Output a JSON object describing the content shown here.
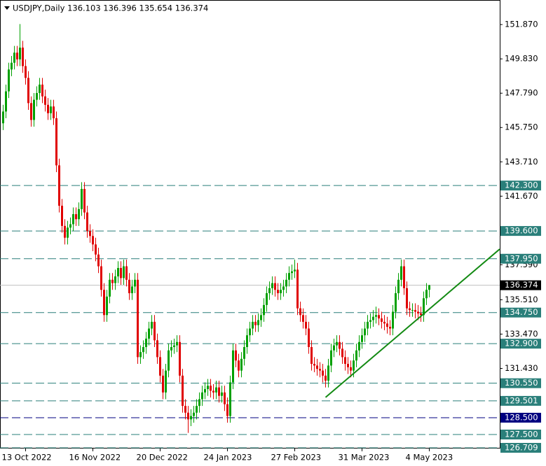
{
  "chart_data": {
    "type": "candlestick",
    "title": "USDJPY,Daily  136.103 136.396 135.654 136.374",
    "categories": [
      null,
      null,
      null,
      null,
      null,
      null,
      null,
      null,
      "13 Oct 2022",
      null,
      null,
      null,
      null,
      null,
      null,
      null,
      null,
      null,
      null,
      null,
      null,
      null,
      null,
      null,
      null,
      null,
      null,
      null,
      null,
      null,
      null,
      null,
      "16 Nov 2022",
      null,
      null,
      null,
      null,
      null,
      null,
      null,
      null,
      null,
      null,
      null,
      null,
      null,
      null,
      null,
      null,
      null,
      null,
      null,
      null,
      null,
      null,
      null,
      "20 Dec 2022",
      null,
      null,
      null,
      null,
      null,
      null,
      null,
      null,
      null,
      null,
      null,
      null,
      null,
      null,
      null,
      null,
      null,
      null,
      null,
      null,
      null,
      null,
      null,
      "24 Jan 2023",
      null,
      null,
      null,
      null,
      null,
      null,
      null,
      null,
      null,
      null,
      null,
      null,
      null,
      null,
      null,
      null,
      null,
      null,
      null,
      null,
      null,
      null,
      null,
      "27 Feb 2023",
      null,
      null,
      null,
      null,
      null,
      null,
      null,
      null,
      null,
      null,
      null,
      null,
      null,
      null,
      null,
      null,
      null,
      null,
      null,
      null,
      null,
      null,
      null,
      "31 Mar 2023",
      null,
      null,
      null,
      null,
      null,
      null,
      null,
      null,
      null,
      null,
      null,
      null,
      null,
      null,
      null,
      null,
      null,
      null,
      null,
      null,
      null,
      null,
      null,
      "4 May 2023"
    ],
    "open": [
      146,
      146.7,
      147.9,
      149.2,
      149.6,
      150.2,
      149.8,
      150.5,
      149.4,
      148.7,
      147.2,
      146.2,
      147.4,
      147.8,
      148.3,
      147.6,
      147.1,
      146.6,
      147,
      146.3,
      143.5,
      141.1,
      139.9,
      139.2,
      139.8,
      140,
      140.6,
      140.3,
      140.9,
      142.1,
      140.7,
      139.6,
      139.3,
      138.8,
      138.2,
      137.5,
      136.1,
      134.6,
      135.7,
      136.7,
      136.5,
      136.9,
      137.4,
      136.8,
      137.5,
      136.7,
      135.9,
      136.3,
      136.7,
      132.1,
      132.4,
      132.7,
      133.2,
      133.8,
      134.2,
      133.1,
      132.1,
      131,
      130,
      131.3,
      132.5,
      132.7,
      132.8,
      133,
      131,
      129.2,
      128.8,
      128.4,
      128.6,
      128.8,
      129.2,
      129.6,
      130,
      130.2,
      130.4,
      130.1,
      130,
      130.3,
      129.8,
      130,
      129.3,
      128.6,
      130.6,
      132.5,
      131.9,
      131.3,
      132,
      132.7,
      133.4,
      133.8,
      134.2,
      134,
      134.3,
      134.6,
      135.2,
      135.9,
      136.2,
      136.5,
      136.1,
      135.9,
      136.1,
      136.3,
      136.7,
      137.1,
      137.2,
      137.3,
      135,
      134.6,
      134.2,
      133.8,
      132.7,
      131.7,
      131.6,
      131.4,
      131.3,
      131,
      130.7,
      131.6,
      132.5,
      132.8,
      133,
      132.6,
      132.1,
      131.7,
      131.5,
      131.3,
      131.9,
      132.5,
      133,
      133.4,
      133.8,
      134.2,
      134.3,
      134.5,
      134.6,
      134.4,
      134.2,
      134.1,
      133.9,
      133.8,
      134.8,
      135.9,
      136.7,
      137.5,
      136.2,
      135,
      134.9,
      134.9,
      134.8,
      134.7,
      134.6,
      135.6,
      136.103
    ],
    "high": [
      147.1,
      148.3,
      149.6,
      150,
      150.6,
      150.6,
      151.9,
      150.9,
      149.8,
      149.1,
      147.6,
      147.8,
      148.2,
      148.7,
      148.7,
      148,
      147.5,
      147.4,
      147.4,
      146.7,
      143.9,
      141.5,
      140.3,
      140.2,
      140.4,
      141,
      141,
      141.3,
      142.5,
      142.5,
      141.1,
      140,
      139.7,
      139.2,
      138.6,
      137.9,
      136.5,
      136.1,
      137.1,
      137.1,
      137.3,
      137.8,
      137.8,
      137.9,
      137.9,
      137.1,
      136.7,
      137.1,
      137.1,
      132.8,
      133.1,
      133.6,
      134.2,
      134.6,
      134.6,
      133.5,
      132.5,
      131.4,
      131.7,
      132.9,
      133.1,
      133.2,
      133.4,
      133.4,
      131.4,
      129.6,
      129.2,
      129,
      129.2,
      129.6,
      130,
      130.4,
      130.6,
      130.8,
      130.8,
      130.5,
      130.7,
      130.7,
      130.4,
      130.4,
      129.7,
      131,
      132.9,
      132.9,
      132.3,
      132.4,
      133.1,
      133.8,
      134.2,
      134.6,
      134.6,
      134.7,
      135,
      135.6,
      136.3,
      136.6,
      136.9,
      136.9,
      136.5,
      136.5,
      136.7,
      137.1,
      137.5,
      137.6,
      137.9,
      137.7,
      135.4,
      135,
      134.6,
      134.2,
      133.1,
      132.1,
      132,
      131.8,
      131.7,
      131.4,
      132,
      132.9,
      133.2,
      133.4,
      133.4,
      133,
      132.5,
      132.1,
      131.9,
      132.3,
      132.9,
      133.4,
      133.8,
      134.2,
      134.6,
      134.7,
      134.9,
      135.1,
      135,
      134.8,
      134.6,
      134.5,
      134.3,
      135.2,
      136.3,
      137.1,
      137.9,
      137.9,
      136.6,
      135.4,
      135.3,
      135.3,
      135.2,
      135.1,
      136,
      136.5,
      136.396
    ],
    "low": [
      145.6,
      146.3,
      147.5,
      148.8,
      149.2,
      149.4,
      149.4,
      149,
      148.3,
      146.8,
      145.8,
      145.8,
      147,
      147.4,
      147.2,
      146.7,
      146.2,
      146.2,
      145.9,
      143.1,
      140.7,
      139.5,
      138.8,
      138.8,
      139.4,
      139.6,
      139.9,
      139.9,
      140.5,
      140.3,
      139.2,
      138.9,
      138.4,
      137.8,
      137.1,
      135.7,
      134.2,
      134.2,
      135.3,
      136.1,
      136.1,
      136.5,
      136.4,
      136.4,
      136.3,
      135.5,
      135.5,
      135.9,
      131.7,
      131.7,
      132,
      132.3,
      132.8,
      133.4,
      132.7,
      131.7,
      130.6,
      129.6,
      129.6,
      130.9,
      132.1,
      132.3,
      132.4,
      130.6,
      128.8,
      128.4,
      127.6,
      128,
      128.2,
      128.4,
      128.8,
      129.2,
      129.6,
      129.8,
      129.7,
      129.6,
      129.6,
      129.4,
      129.4,
      128.9,
      128.2,
      128.2,
      130.2,
      131.5,
      130.9,
      130.9,
      131.6,
      132.3,
      133,
      133.4,
      133.6,
      133.6,
      133.9,
      134.2,
      134.8,
      135.5,
      135.8,
      135.7,
      135.5,
      135.5,
      135.7,
      135.9,
      136.3,
      136.7,
      136.8,
      134.6,
      134.2,
      133.8,
      133.4,
      132.3,
      131.3,
      131.2,
      131,
      130.9,
      130.6,
      130.3,
      130.3,
      131.2,
      132.1,
      132.4,
      132.2,
      131.7,
      131.3,
      131.1,
      130.9,
      130.9,
      131.5,
      132.1,
      132.6,
      133,
      133.4,
      133.8,
      133.9,
      134.1,
      134,
      133.8,
      133.7,
      133.5,
      133.4,
      133.4,
      134.4,
      135.5,
      136.3,
      135.8,
      134.6,
      134.5,
      134.5,
      134.4,
      134.3,
      134.2,
      134.2,
      135.2,
      135.654
    ],
    "close": [
      146.7,
      147.9,
      149.2,
      149.6,
      150.2,
      149.8,
      150.5,
      149.4,
      148.7,
      147.2,
      146.2,
      147.4,
      147.8,
      148.3,
      147.6,
      147.1,
      146.6,
      147,
      146.3,
      143.5,
      141.1,
      139.9,
      139.2,
      139.8,
      140,
      140.6,
      140.3,
      140.9,
      142.1,
      140.7,
      139.6,
      139.3,
      138.8,
      138.2,
      137.5,
      136.1,
      134.6,
      135.7,
      136.7,
      136.5,
      136.9,
      137.4,
      136.8,
      137.5,
      136.7,
      135.9,
      136.3,
      136.7,
      132.1,
      132.4,
      132.7,
      133.2,
      133.8,
      134.2,
      133.1,
      132.1,
      131,
      130,
      131.3,
      132.5,
      132.7,
      132.8,
      133,
      131,
      129.2,
      128.8,
      128.4,
      128.6,
      128.8,
      129.2,
      129.6,
      130,
      130.2,
      130.4,
      130.1,
      130,
      130.3,
      129.8,
      130,
      129.3,
      128.6,
      130.6,
      132.5,
      131.9,
      131.3,
      132,
      132.7,
      133.4,
      133.8,
      134.2,
      134,
      134.3,
      134.6,
      135.2,
      135.9,
      136.2,
      136.5,
      136.1,
      135.9,
      136.1,
      136.3,
      136.7,
      137.1,
      137.2,
      137.3,
      135,
      134.6,
      134.2,
      133.8,
      132.7,
      131.7,
      131.6,
      131.4,
      131.3,
      131,
      130.7,
      131.6,
      132.5,
      132.8,
      133,
      132.6,
      132.1,
      131.7,
      131.5,
      131.3,
      131.9,
      132.5,
      133,
      133.4,
      133.8,
      134.2,
      134.3,
      134.5,
      134.6,
      134.4,
      134.2,
      134.1,
      133.9,
      133.8,
      134.8,
      135.9,
      136.7,
      137.5,
      136.2,
      135,
      134.9,
      134.9,
      134.8,
      134.7,
      134.6,
      135.6,
      136.1,
      136.374
    ],
    "up_color": "#00a000",
    "down_color": "#e00000",
    "ylim": [
      126.71,
      153.33
    ],
    "yticks": [
      {
        "value": 151.87,
        "label": "151.870"
      },
      {
        "value": 149.83,
        "label": "149.830"
      },
      {
        "value": 147.79,
        "label": "147.790"
      },
      {
        "value": 145.75,
        "label": "145.750"
      },
      {
        "value": 143.71,
        "label": "143.710"
      },
      {
        "value": 141.67,
        "label": "141.670"
      },
      {
        "value": 137.59,
        "label": "137.590"
      },
      {
        "value": 135.51,
        "label": "135.510"
      },
      {
        "value": 133.47,
        "label": "133.470"
      },
      {
        "value": 131.43,
        "label": "131.430"
      }
    ],
    "levels": [
      {
        "value": 142.3,
        "label": "142.300",
        "color": "#2a7f7a"
      },
      {
        "value": 139.6,
        "label": "139.600",
        "color": "#2a7f7a"
      },
      {
        "value": 137.95,
        "label": "137.950",
        "color": "#2a7f7a"
      },
      {
        "value": 134.75,
        "label": "134.750",
        "color": "#2a7f7a"
      },
      {
        "value": 132.9,
        "label": "132.900",
        "color": "#2a7f7a"
      },
      {
        "value": 130.55,
        "label": "130.550",
        "color": "#2a7f7a"
      },
      {
        "value": 129.501,
        "label": "129.501",
        "color": "#2a7f7a"
      },
      {
        "value": 128.5,
        "label": "128.500",
        "color": "#000080"
      },
      {
        "value": 127.5,
        "label": "127.500",
        "color": "#2a7f7a"
      },
      {
        "value": 126.709,
        "label": "126.709",
        "color": "#2a7f7a"
      }
    ],
    "last_price": {
      "value": 136.374,
      "label": "136.374",
      "color": "#000000"
    },
    "trendline": {
      "x": [
        115,
        177.1
      ],
      "y": [
        129.71,
        138.52
      ],
      "color": "#138a13"
    }
  }
}
